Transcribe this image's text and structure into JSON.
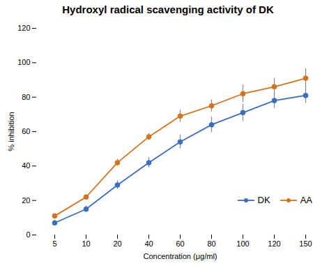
{
  "chart_data": {
    "type": "line",
    "title": "Hydroxyl radical scavenging activity of DK",
    "xlabel": "Concentration (μg/ml)",
    "ylabel": "% inhibition",
    "categories": [
      "5",
      "10",
      "20",
      "40",
      "60",
      "80",
      "100",
      "120",
      "150"
    ],
    "series": [
      {
        "name": "DK",
        "color": "#3a6fbf",
        "marker": "circle",
        "line_style": "solid",
        "values": [
          7,
          15,
          29,
          42,
          54,
          64,
          71,
          78,
          81
        ],
        "errors": [
          1.5,
          2.0,
          2.5,
          3.0,
          4.0,
          4.5,
          5.0,
          4.5,
          4.5
        ]
      },
      {
        "name": "AA",
        "color": "#d4731c",
        "marker": "circle",
        "line_style": "solid",
        "values": [
          11,
          22,
          42,
          57,
          69,
          75,
          82,
          86,
          91
        ],
        "errors": [
          1.0,
          1.5,
          2.0,
          2.0,
          3.5,
          3.5,
          5.0,
          5.0,
          5.5
        ]
      }
    ],
    "ylim": [
      0,
      120
    ],
    "yticks": [
      0,
      20,
      40,
      60,
      80,
      100,
      120
    ],
    "legend": "lower right",
    "grid": false
  }
}
